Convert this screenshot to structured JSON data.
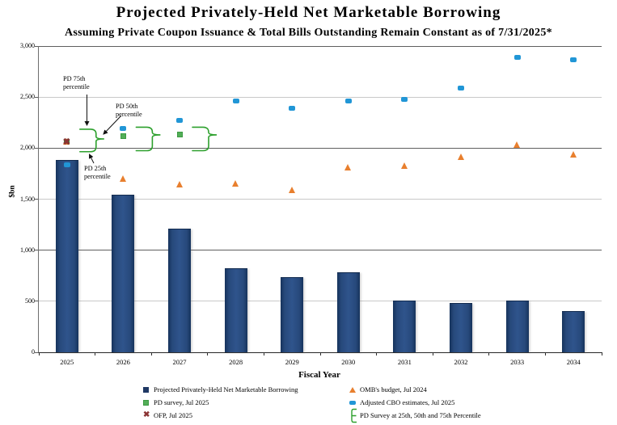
{
  "header": {
    "title": "Projected Privately-Held Net Marketable Borrowing",
    "subtitle": "Assuming Private Coupon Issuance & Total Bills Outstanding Remain Constant as of 7/31/2025*"
  },
  "y_axis": {
    "title": "$bn",
    "ticks": [
      {
        "v": 0,
        "label": "0"
      },
      {
        "v": 500,
        "label": "500"
      },
      {
        "v": 1000,
        "label": "1,000"
      },
      {
        "v": 1500,
        "label": "1,500"
      },
      {
        "v": 2000,
        "label": "2,000"
      },
      {
        "v": 2500,
        "label": "2,500"
      },
      {
        "v": 3000,
        "label": "3,000"
      }
    ]
  },
  "x_axis": {
    "title": "Fiscal Year",
    "categories": [
      "2025",
      "2026",
      "2027",
      "2028",
      "2029",
      "2030",
      "2031",
      "2032",
      "2033",
      "2034"
    ]
  },
  "annotations": {
    "pd75": {
      "line1": "PD 75th",
      "line2": "percentile"
    },
    "pd50": {
      "line1": "PD 50th",
      "line2": "percentile"
    },
    "pd25": {
      "line1": "PD 25th",
      "line2": "percentile"
    }
  },
  "legend": [
    {
      "label": "Projected Privately-Held Net Marketable Borrowing",
      "marker": "bar",
      "column": "left"
    },
    {
      "label": "PD survey, Jul 2025",
      "marker": "square",
      "column": "left"
    },
    {
      "label": "OFP, Jul 2025",
      "marker": "x",
      "column": "left"
    },
    {
      "label": "OMB's budget, Jul 2024",
      "marker": "triangle",
      "column": "right"
    },
    {
      "label": "Adjusted CBO estimates, Jul 2025",
      "marker": "blue-square",
      "column": "right"
    },
    {
      "label": "PD Survey at 25th, 50th and 75th Percentile",
      "marker": "brace",
      "column": "right"
    }
  ],
  "colors": {
    "bar_fill": "#27497B",
    "bar_legend": "#1F3864",
    "pd_survey_green": "#53AE58",
    "omb_orange": "#E87F2E",
    "cbo_blue": "#2196D6",
    "ofp_dark_red": "#8B3434",
    "brace_green": "#2DA02D",
    "grid_light": "#C9C9C9",
    "grid_dark": "#5F5F5F"
  },
  "chart_data": {
    "type": "bar+scatter",
    "title": "Projected Privately-Held Net Marketable Borrowing",
    "ylabel": "$bn",
    "xlabel": "Fiscal Year",
    "ylim": [
      0,
      3000
    ],
    "grid": true,
    "categories": [
      2025,
      2026,
      2027,
      2028,
      2029,
      2030,
      2031,
      2032,
      2033,
      2034
    ],
    "series": [
      {
        "name": "Projected Privately-Held Net Marketable Borrowing",
        "type": "bar",
        "values": [
          1885,
          1545,
          1215,
          825,
          740,
          785,
          510,
          485,
          505,
          405
        ]
      },
      {
        "name": "PD survey, Jul 2025",
        "type": "scatter-square",
        "values": [
          2060,
          2120,
          2130,
          null,
          null,
          null,
          null,
          null,
          null,
          null
        ]
      },
      {
        "name": "OMB's budget, Jul 2024",
        "type": "scatter-triangle",
        "values": [
          2060,
          1700,
          1640,
          1650,
          1590,
          1810,
          1825,
          1915,
          2030,
          1935
        ]
      },
      {
        "name": "Adjusted CBO estimates, Jul 2025",
        "type": "scatter-square-rounded",
        "values": [
          1840,
          2195,
          2275,
          2465,
          2390,
          2465,
          2480,
          2590,
          2890,
          2865
        ]
      },
      {
        "name": "OFP, Jul 2025",
        "type": "scatter-x",
        "values": [
          2055,
          null,
          null,
          null,
          null,
          null,
          null,
          null,
          null,
          null
        ]
      },
      {
        "name": "PD Survey at 25th, 50th and 75th Percentile",
        "type": "brace-range",
        "points": [
          {
            "year": 2025,
            "p25": 1965,
            "p50": 2090,
            "p75": 2185
          },
          {
            "year": 2026,
            "p25": 1975,
            "p50": 2130,
            "p75": 2205
          },
          {
            "year": 2027,
            "p25": 1975,
            "p50": 2130,
            "p75": 2205
          }
        ]
      }
    ],
    "legend_position": "bottom"
  }
}
